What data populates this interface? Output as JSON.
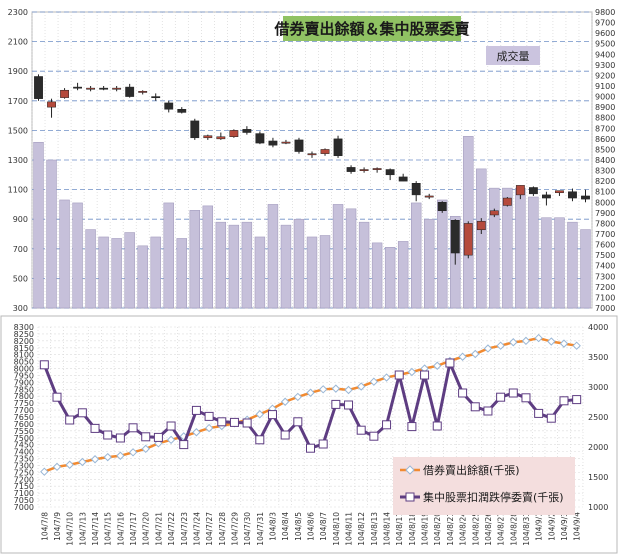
{
  "chart_data": [
    {
      "type": "candlestick+bar",
      "title": "借券賣出餘額＆集中股票委賣",
      "volume_label": "成交量",
      "dates": [
        "104/7/8",
        "104/7/9",
        "104/7/10",
        "104/7/13",
        "104/7/14",
        "104/7/15",
        "104/7/16",
        "104/7/17",
        "104/7/20",
        "104/7/21",
        "104/7/22",
        "104/7/23",
        "104/7/24",
        "104/7/27",
        "104/7/28",
        "104/7/29",
        "104/7/30",
        "104/7/31",
        "104/8/3",
        "104/8/4",
        "104/8/5",
        "104/8/6",
        "104/8/7",
        "104/8/10",
        "104/8/11",
        "104/8/12",
        "104/8/13",
        "104/8/14",
        "104/8/17",
        "104/8/18",
        "104/8/19",
        "104/8/20",
        "104/8/21",
        "104/8/24",
        "104/8/25",
        "104/8/26",
        "104/8/27",
        "104/8/28",
        "104/8/31",
        "104/9/1",
        "104/9/2",
        "104/9/3",
        "104/9/4"
      ],
      "y_left": {
        "min": 300,
        "max": 2300,
        "ticks": [
          300,
          500,
          700,
          900,
          1100,
          1300,
          1500,
          1700,
          1900,
          2100,
          2300
        ]
      },
      "y_right": {
        "min": 7000,
        "max": 9800,
        "step": 100
      },
      "volume": [
        1420,
        1300,
        1030,
        1010,
        830,
        780,
        770,
        810,
        720,
        780,
        1010,
        770,
        960,
        990,
        880,
        860,
        880,
        780,
        1000,
        860,
        900,
        780,
        790,
        1000,
        970,
        880,
        740,
        710,
        750,
        1010,
        900,
        1030,
        920,
        1460,
        1240,
        1110,
        1110,
        1110,
        1050,
        910,
        910,
        880,
        830
      ],
      "ohlc": [
        {
          "o": 9190,
          "h": 9210,
          "l": 8960,
          "c": 8980
        },
        {
          "o": 8900,
          "h": 8980,
          "l": 8800,
          "c": 8950
        },
        {
          "o": 8990,
          "h": 9080,
          "l": 8980,
          "c": 9060
        },
        {
          "o": 9090,
          "h": 9130,
          "l": 9060,
          "c": 9080
        },
        {
          "o": 9070,
          "h": 9100,
          "l": 9050,
          "c": 9080
        },
        {
          "o": 9080,
          "h": 9100,
          "l": 9060,
          "c": 9070
        },
        {
          "o": 9070,
          "h": 9100,
          "l": 9050,
          "c": 9080
        },
        {
          "o": 9090,
          "h": 9120,
          "l": 8990,
          "c": 9000
        },
        {
          "o": 9040,
          "h": 9060,
          "l": 9020,
          "c": 9050
        },
        {
          "o": 9000,
          "h": 9030,
          "l": 8960,
          "c": 8990
        },
        {
          "o": 8940,
          "h": 8960,
          "l": 8850,
          "c": 8880
        },
        {
          "o": 8880,
          "h": 8900,
          "l": 8840,
          "c": 8850
        },
        {
          "o": 8770,
          "h": 8790,
          "l": 8590,
          "c": 8610
        },
        {
          "o": 8610,
          "h": 8640,
          "l": 8590,
          "c": 8630
        },
        {
          "o": 8600,
          "h": 8660,
          "l": 8590,
          "c": 8620
        },
        {
          "o": 8620,
          "h": 8690,
          "l": 8610,
          "c": 8680
        },
        {
          "o": 8690,
          "h": 8720,
          "l": 8640,
          "c": 8660
        },
        {
          "o": 8650,
          "h": 8670,
          "l": 8550,
          "c": 8560
        },
        {
          "o": 8580,
          "h": 8610,
          "l": 8520,
          "c": 8540
        },
        {
          "o": 8560,
          "h": 8590,
          "l": 8550,
          "c": 8570
        },
        {
          "o": 8590,
          "h": 8610,
          "l": 8460,
          "c": 8480
        },
        {
          "o": 8450,
          "h": 8480,
          "l": 8420,
          "c": 8460
        },
        {
          "o": 8460,
          "h": 8510,
          "l": 8440,
          "c": 8500
        },
        {
          "o": 8600,
          "h": 8630,
          "l": 8420,
          "c": 8440
        },
        {
          "o": 8330,
          "h": 8350,
          "l": 8270,
          "c": 8290
        },
        {
          "o": 8300,
          "h": 8330,
          "l": 8280,
          "c": 8310
        },
        {
          "o": 8320,
          "h": 8330,
          "l": 8280,
          "c": 8320
        },
        {
          "o": 8310,
          "h": 8320,
          "l": 8210,
          "c": 8260
        },
        {
          "o": 8240,
          "h": 8270,
          "l": 8200,
          "c": 8200
        },
        {
          "o": 8180,
          "h": 8200,
          "l": 8010,
          "c": 8070
        },
        {
          "o": 8050,
          "h": 8080,
          "l": 8030,
          "c": 8060
        },
        {
          "o": 8000,
          "h": 8010,
          "l": 7900,
          "c": 7920
        },
        {
          "o": 7830,
          "h": 7840,
          "l": 7410,
          "c": 7520
        },
        {
          "o": 7500,
          "h": 7820,
          "l": 7470,
          "c": 7800
        },
        {
          "o": 7740,
          "h": 7850,
          "l": 7700,
          "c": 7820
        },
        {
          "o": 7880,
          "h": 7940,
          "l": 7860,
          "c": 7920
        },
        {
          "o": 7970,
          "h": 8050,
          "l": 7960,
          "c": 8040
        },
        {
          "o": 8070,
          "h": 8160,
          "l": 8030,
          "c": 8160
        },
        {
          "o": 8140,
          "h": 8150,
          "l": 8060,
          "c": 8080
        },
        {
          "o": 8070,
          "h": 8100,
          "l": 7970,
          "c": 8040
        },
        {
          "o": 8090,
          "h": 8110,
          "l": 8060,
          "c": 8110
        },
        {
          "o": 8100,
          "h": 8130,
          "l": 8010,
          "c": 8040
        },
        {
          "o": 8060,
          "h": 8120,
          "l": 8000,
          "c": 8030
        }
      ]
    },
    {
      "type": "line",
      "y_left": {
        "min": 7000,
        "max": 8300,
        "step": 50
      },
      "y_right": {
        "min": 1000,
        "max": 4000,
        "step": 500
      },
      "series": [
        {
          "name": "借券賣出餘額(千張)",
          "axis": "left",
          "color": "#f28a30",
          "values": [
            7255,
            7290,
            7305,
            7325,
            7345,
            7360,
            7370,
            7395,
            7420,
            7460,
            7485,
            7510,
            7540,
            7570,
            7585,
            7605,
            7630,
            7670,
            7710,
            7760,
            7795,
            7825,
            7850,
            7855,
            7845,
            7870,
            7905,
            7935,
            7955,
            7975,
            8000,
            8020,
            8055,
            8085,
            8105,
            8145,
            8165,
            8190,
            8200,
            8220,
            8195,
            8180,
            8165
          ]
        },
        {
          "name": "集中股票扣潤跌停委賣(千張)",
          "axis": "right",
          "color": "#5e3d82",
          "values": [
            3370,
            2830,
            2450,
            2570,
            2310,
            2200,
            2150,
            2320,
            2170,
            2160,
            2350,
            2040,
            2610,
            2510,
            2420,
            2410,
            2400,
            2120,
            2540,
            2200,
            2420,
            1980,
            2050,
            2710,
            2700,
            2280,
            2180,
            2370,
            3200,
            2340,
            3200,
            2350,
            3400,
            2900,
            2670,
            2600,
            2830,
            2900,
            2820,
            2560,
            2480,
            2770,
            2790
          ]
        }
      ]
    }
  ],
  "colors": {
    "up": "#b54a3c",
    "down": "#2b2b2b",
    "volume_fill": "#c6c0da",
    "title_bg": "#90c263",
    "label_bg": "#cbc4df",
    "legend_bg": "#f4dede"
  }
}
